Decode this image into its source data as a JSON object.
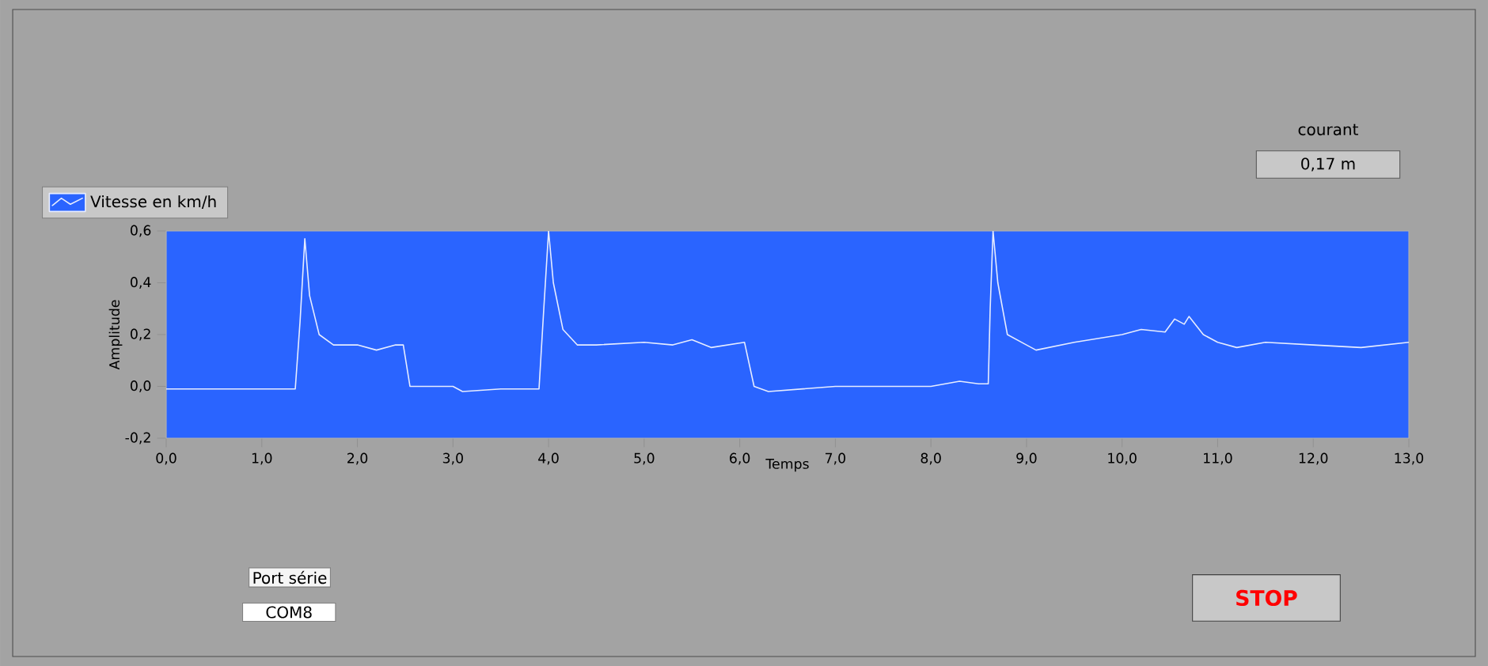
{
  "chart_data": {
    "type": "line",
    "xlabel": "Temps",
    "ylabel": "Amplitude",
    "legend": "top left",
    "grid": false,
    "marker": "none",
    "line_style": "solid",
    "xlim": [
      0,
      13
    ],
    "ylim": [
      -0.2,
      0.6
    ],
    "xticks": [
      {
        "value": 0,
        "label": "0,0"
      },
      {
        "value": 1,
        "label": "1,0"
      },
      {
        "value": 2,
        "label": "2,0"
      },
      {
        "value": 3,
        "label": "3,0"
      },
      {
        "value": 4,
        "label": "4,0"
      },
      {
        "value": 5,
        "label": "5,0"
      },
      {
        "value": 6,
        "label": "6,0"
      },
      {
        "value": 7,
        "label": "7,0"
      },
      {
        "value": 8,
        "label": "8,0"
      },
      {
        "value": 9,
        "label": "9,0"
      },
      {
        "value": 10,
        "label": "10,0"
      },
      {
        "value": 11,
        "label": "11,0"
      },
      {
        "value": 12,
        "label": "12,0"
      },
      {
        "value": 13,
        "label": "13,0"
      }
    ],
    "yticks": [
      {
        "value": -0.2,
        "label": "-0,2"
      },
      {
        "value": 0,
        "label": "0,0"
      },
      {
        "value": 0.2,
        "label": "0,2"
      },
      {
        "value": 0.4,
        "label": "0,4"
      },
      {
        "value": 0.6,
        "label": "0,6"
      }
    ],
    "series": [
      {
        "name": "Vitesse en km/h",
        "color": "#e6ecff",
        "x": [
          0,
          0.5,
          1.0,
          1.35,
          1.4,
          1.45,
          1.5,
          1.6,
          1.75,
          2.0,
          2.2,
          2.4,
          2.48,
          2.55,
          3.0,
          3.1,
          3.5,
          3.9,
          3.95,
          4.0,
          4.05,
          4.15,
          4.3,
          4.5,
          5.0,
          5.3,
          5.5,
          5.7,
          6.05,
          6.15,
          6.3,
          7.0,
          8.0,
          8.3,
          8.5,
          8.6,
          8.62,
          8.65,
          8.7,
          8.8,
          9.0,
          9.1,
          9.5,
          10.0,
          10.2,
          10.45,
          10.55,
          10.65,
          10.7,
          10.85,
          11.0,
          11.2,
          11.5,
          12.0,
          12.5,
          13.0
        ],
        "values": [
          -0.01,
          -0.01,
          -0.01,
          -0.01,
          0.25,
          0.57,
          0.35,
          0.2,
          0.16,
          0.16,
          0.14,
          0.16,
          0.16,
          0.0,
          0.0,
          -0.02,
          -0.01,
          -0.01,
          0.3,
          0.6,
          0.4,
          0.22,
          0.16,
          0.16,
          0.17,
          0.16,
          0.18,
          0.15,
          0.17,
          0.0,
          -0.02,
          0.0,
          0.0,
          0.02,
          0.01,
          0.01,
          0.3,
          0.6,
          0.4,
          0.2,
          0.16,
          0.14,
          0.17,
          0.2,
          0.22,
          0.21,
          0.26,
          0.24,
          0.27,
          0.2,
          0.17,
          0.15,
          0.17,
          0.16,
          0.15,
          0.17
        ]
      }
    ],
    "annotations": [
      "courant",
      "0,17 m",
      "Port série",
      "COM8",
      "STOP"
    ]
  }
}
